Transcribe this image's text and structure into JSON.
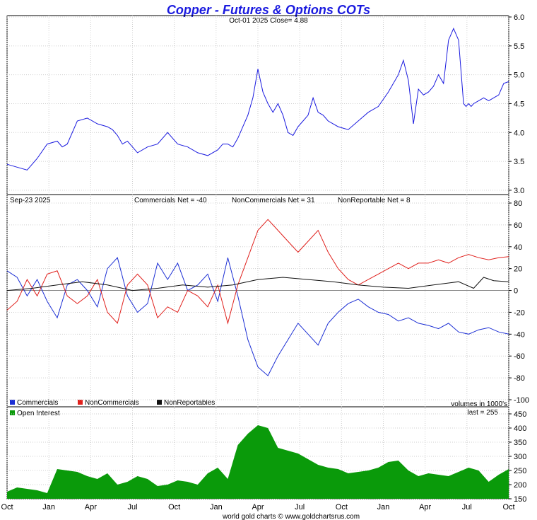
{
  "title": "Copper - Futures & Options COTs",
  "price_caption": "Oct-01  2025   Close= 4.88",
  "cot_date": "Sep-23  2025",
  "cot_net_labels": [
    "Commercials Net = -40",
    "NonCommercials Net = 31",
    "NonReportable Net = 8"
  ],
  "legend": {
    "commercials": "Commercials",
    "noncommercials": "NonCommercials",
    "nonreportables": "NonReportables",
    "open_interest": "Open Interest"
  },
  "volumes_note": "volumes in 1000's",
  "last_note": "last = 255",
  "footer": "world gold charts © www.goldchartsrus.com",
  "colors": {
    "title": "#1a1adf",
    "price": "#1a1adf",
    "commercials": "#1c2fd4",
    "noncommercials": "#e0201c",
    "nonreportables": "#111111",
    "open_interest": "#0a9a0a"
  },
  "chart_data": [
    {
      "type": "line",
      "title": "Copper - Futures & Options COTs",
      "subtitle": "Oct-01  2025   Close= 4.88",
      "x_ticks": [
        "Oct",
        "Jan",
        "Apr",
        "Jul",
        "Oct",
        "Jan",
        "Apr",
        "Jul",
        "Oct",
        "Jan",
        "Apr",
        "Jul",
        "Oct"
      ],
      "ylim": [
        2.95,
        6.0
      ],
      "y_ticks": [
        3.0,
        3.5,
        4.0,
        4.5,
        5.0,
        5.5,
        6.0
      ],
      "series": [
        {
          "values_t": [
            0,
            0.02,
            0.04,
            0.06,
            0.08,
            0.1,
            0.11,
            0.12,
            0.14,
            0.16,
            0.18,
            0.2,
            0.21,
            0.22,
            0.23,
            0.24,
            0.26,
            0.28,
            0.3,
            0.32,
            0.34,
            0.36,
            0.38,
            0.4,
            0.42,
            0.43,
            0.44,
            0.45,
            0.46,
            0.47,
            0.48,
            0.49,
            0.5,
            0.51,
            0.52,
            0.53,
            0.54,
            0.55,
            0.56,
            0.57,
            0.58,
            0.59,
            0.6,
            0.61,
            0.62,
            0.63,
            0.64,
            0.66,
            0.68,
            0.7,
            0.72,
            0.74,
            0.76,
            0.78,
            0.79,
            0.8,
            0.81,
            0.82,
            0.83,
            0.84,
            0.85,
            0.86,
            0.87,
            0.88,
            0.89,
            0.9,
            0.91,
            0.915,
            0.92,
            0.925,
            0.93,
            0.94,
            0.95,
            0.96,
            0.97,
            0.98,
            0.99,
            1.0
          ],
          "values": [
            3.45,
            3.4,
            3.35,
            3.55,
            3.8,
            3.85,
            3.75,
            3.8,
            4.2,
            4.25,
            4.15,
            4.1,
            4.05,
            3.95,
            3.8,
            3.85,
            3.65,
            3.75,
            3.8,
            4.0,
            3.8,
            3.75,
            3.65,
            3.6,
            3.7,
            3.8,
            3.8,
            3.75,
            3.9,
            4.1,
            4.3,
            4.6,
            5.1,
            4.7,
            4.5,
            4.35,
            4.5,
            4.3,
            4.0,
            3.95,
            4.1,
            4.2,
            4.3,
            4.6,
            4.35,
            4.3,
            4.2,
            4.1,
            4.05,
            4.2,
            4.35,
            4.45,
            4.7,
            5.0,
            5.25,
            4.9,
            4.15,
            4.75,
            4.65,
            4.7,
            4.8,
            5.0,
            4.85,
            5.6,
            5.8,
            5.6,
            4.5,
            4.45,
            4.5,
            4.45,
            4.5,
            4.55,
            4.6,
            4.55,
            4.6,
            4.65,
            4.85,
            4.88
          ]
        }
      ]
    },
    {
      "type": "line",
      "title": "Sep-23  2025",
      "ylim": [
        -100,
        80
      ],
      "y_ticks": [
        -100,
        -80,
        -60,
        -40,
        -20,
        0,
        20,
        40,
        60,
        80
      ],
      "series": [
        {
          "name": "Commercials",
          "x": [
            0,
            0.02,
            0.04,
            0.06,
            0.08,
            0.1,
            0.12,
            0.14,
            0.16,
            0.18,
            0.2,
            0.22,
            0.24,
            0.26,
            0.28,
            0.3,
            0.32,
            0.34,
            0.36,
            0.38,
            0.4,
            0.42,
            0.44,
            0.46,
            0.48,
            0.5,
            0.52,
            0.54,
            0.56,
            0.58,
            0.6,
            0.62,
            0.64,
            0.66,
            0.68,
            0.7,
            0.72,
            0.74,
            0.76,
            0.78,
            0.8,
            0.82,
            0.84,
            0.86,
            0.88,
            0.9,
            0.92,
            0.94,
            0.96,
            0.98,
            1.0
          ],
          "y": [
            18,
            12,
            -5,
            10,
            -10,
            -25,
            5,
            10,
            0,
            -15,
            20,
            30,
            -5,
            -20,
            -12,
            25,
            10,
            25,
            0,
            5,
            15,
            -10,
            30,
            -5,
            -45,
            -70,
            -78,
            -60,
            -45,
            -30,
            -40,
            -50,
            -30,
            -20,
            -12,
            -8,
            -15,
            -20,
            -22,
            -28,
            -25,
            -30,
            -32,
            -35,
            -30,
            -38,
            -40,
            -36,
            -34,
            -38,
            -40
          ]
        },
        {
          "name": "NonCommercials",
          "x": [
            0,
            0.02,
            0.04,
            0.06,
            0.08,
            0.1,
            0.12,
            0.14,
            0.16,
            0.18,
            0.2,
            0.22,
            0.24,
            0.26,
            0.28,
            0.3,
            0.32,
            0.34,
            0.36,
            0.38,
            0.4,
            0.42,
            0.44,
            0.46,
            0.48,
            0.5,
            0.52,
            0.54,
            0.56,
            0.58,
            0.6,
            0.62,
            0.64,
            0.66,
            0.68,
            0.7,
            0.72,
            0.74,
            0.76,
            0.78,
            0.8,
            0.82,
            0.84,
            0.86,
            0.88,
            0.9,
            0.92,
            0.94,
            0.96,
            0.98,
            1.0
          ],
          "y": [
            -18,
            -10,
            10,
            -5,
            15,
            18,
            -5,
            -12,
            -5,
            10,
            -20,
            -30,
            5,
            15,
            5,
            -25,
            -15,
            -20,
            0,
            -5,
            -15,
            5,
            -30,
            5,
            30,
            55,
            65,
            55,
            45,
            35,
            45,
            55,
            35,
            20,
            10,
            5,
            10,
            15,
            20,
            25,
            20,
            25,
            25,
            28,
            25,
            30,
            33,
            30,
            28,
            30,
            31
          ]
        },
        {
          "name": "NonReportables",
          "x": [
            0,
            0.05,
            0.1,
            0.15,
            0.2,
            0.25,
            0.3,
            0.35,
            0.4,
            0.45,
            0.5,
            0.55,
            0.6,
            0.65,
            0.7,
            0.75,
            0.8,
            0.85,
            0.9,
            0.93,
            0.95,
            0.97,
            1.0
          ],
          "y": [
            0,
            2,
            5,
            8,
            5,
            0,
            2,
            5,
            3,
            5,
            10,
            12,
            10,
            8,
            5,
            3,
            2,
            5,
            8,
            2,
            12,
            9,
            8
          ]
        }
      ]
    },
    {
      "type": "area",
      "title": "Open Interest",
      "ylim": [
        150,
        450
      ],
      "y_ticks": [
        150,
        200,
        250,
        300,
        350,
        400,
        450
      ],
      "series": [
        {
          "name": "Open Interest",
          "x": [
            0,
            0.02,
            0.04,
            0.06,
            0.08,
            0.1,
            0.12,
            0.14,
            0.16,
            0.18,
            0.2,
            0.22,
            0.24,
            0.26,
            0.28,
            0.3,
            0.32,
            0.34,
            0.36,
            0.38,
            0.4,
            0.42,
            0.44,
            0.46,
            0.48,
            0.5,
            0.52,
            0.54,
            0.56,
            0.58,
            0.6,
            0.62,
            0.64,
            0.66,
            0.68,
            0.7,
            0.72,
            0.74,
            0.76,
            0.78,
            0.8,
            0.82,
            0.84,
            0.86,
            0.88,
            0.9,
            0.92,
            0.94,
            0.96,
            0.98,
            1.0
          ],
          "y": [
            175,
            190,
            185,
            180,
            170,
            255,
            250,
            245,
            230,
            220,
            240,
            200,
            210,
            230,
            220,
            195,
            200,
            215,
            210,
            200,
            240,
            260,
            220,
            340,
            380,
            410,
            400,
            330,
            320,
            310,
            290,
            270,
            260,
            255,
            240,
            245,
            250,
            260,
            280,
            285,
            250,
            230,
            240,
            235,
            230,
            245,
            260,
            250,
            210,
            235,
            255
          ]
        }
      ]
    }
  ]
}
